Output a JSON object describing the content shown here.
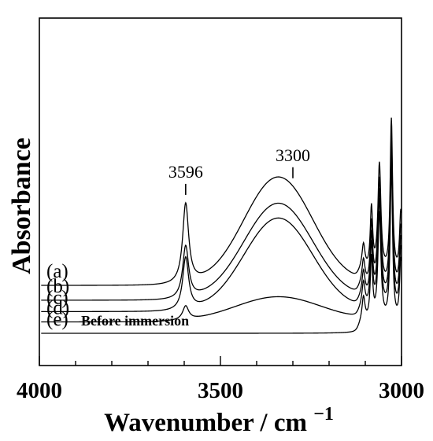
{
  "chart_data": {
    "type": "line",
    "xlabel": "Wavenumber / cm",
    "xlabel_superscript": "−1",
    "ylabel": "Absorbance",
    "xlim": [
      4000,
      3000
    ],
    "x_ticks": [
      4000,
      3500,
      3000
    ],
    "x_tick_labels": [
      "4000",
      "3500",
      "3000"
    ],
    "annotations": [
      {
        "label": "3596",
        "x": 3596
      },
      {
        "label": "3300",
        "x": 3300
      }
    ],
    "series": [
      {
        "label": "(a)",
        "baseline": 0.42,
        "peaks": [
          {
            "x": 3596,
            "h": 0.7,
            "w": 10
          },
          {
            "x": 3340,
            "h": 0.95,
            "w": 95
          }
        ]
      },
      {
        "label": "(b)",
        "baseline": 0.29,
        "peaks": [
          {
            "x": 3596,
            "h": 0.46,
            "w": 10
          },
          {
            "x": 3340,
            "h": 0.85,
            "w": 95
          }
        ]
      },
      {
        "label": "(c)",
        "baseline": 0.19,
        "peaks": [
          {
            "x": 3596,
            "h": 0.46,
            "w": 10
          },
          {
            "x": 3340,
            "h": 0.82,
            "w": 95
          }
        ]
      },
      {
        "label": "(d)",
        "baseline": 0.1,
        "peaks": [
          {
            "x": 3596,
            "h": 0.12,
            "w": 10
          },
          {
            "x": 3340,
            "h": 0.22,
            "w": 120
          }
        ]
      },
      {
        "label": "(e)",
        "label_extra": "Before immersion",
        "baseline": 0.0,
        "peaks": []
      }
    ],
    "ch_bands": [
      {
        "x": 3028,
        "h": 1.35,
        "w": 4
      },
      {
        "x": 3061,
        "h": 0.95,
        "w": 5
      },
      {
        "x": 3083,
        "h": 0.55,
        "w": 4
      },
      {
        "x": 3105,
        "h": 0.22,
        "w": 5
      },
      {
        "x": 3002,
        "h": 0.55,
        "w": 4
      }
    ],
    "grid": false,
    "legend": "none"
  }
}
